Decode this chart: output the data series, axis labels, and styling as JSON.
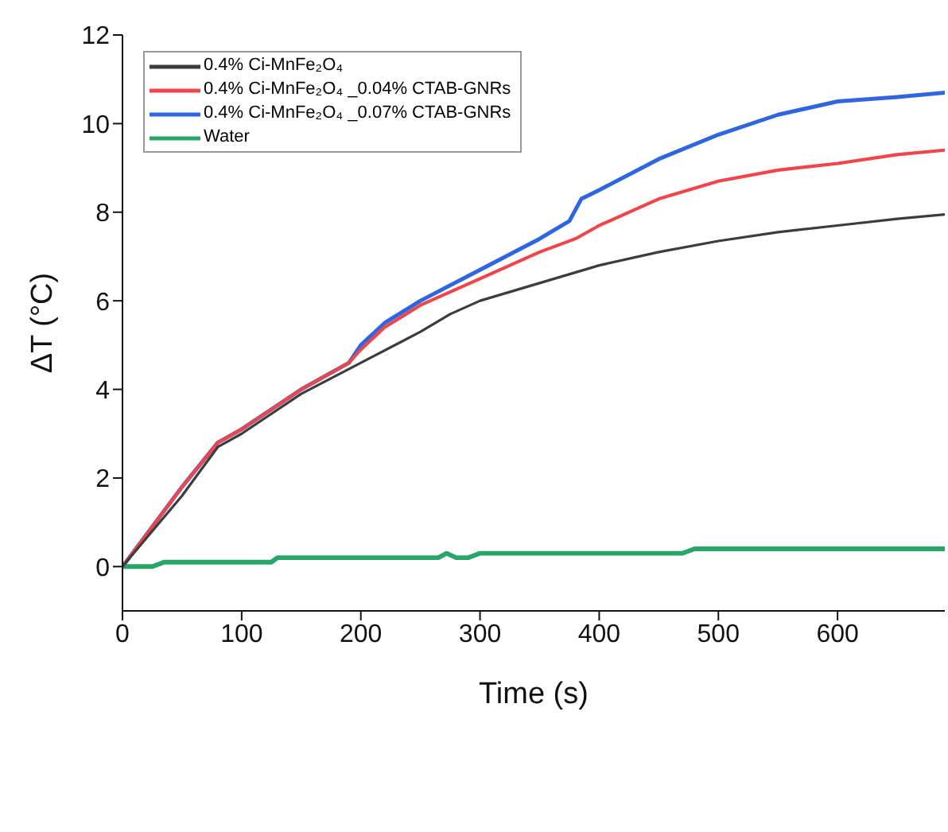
{
  "chart_data": {
    "type": "line",
    "xlabel": "Time (s)",
    "ylabel": "ΔT (°C)",
    "xlim": [
      0,
      690
    ],
    "xticks": [
      0,
      100,
      200,
      300,
      400,
      500,
      600
    ],
    "ylim": [
      -1,
      12
    ],
    "yticks": [
      0,
      2,
      4,
      6,
      8,
      10,
      12
    ],
    "grid": false,
    "legend": "top left",
    "marker": "none",
    "line_style": "solid",
    "series": [
      {
        "name": "0.4% Ci-MnFe₂O₄",
        "color": "#3c3c3c",
        "x": [
          0,
          50,
          80,
          100,
          150,
          200,
          250,
          275,
          300,
          350,
          400,
          450,
          500,
          550,
          600,
          650,
          690
        ],
        "values": [
          0,
          1.6,
          2.7,
          3.0,
          3.9,
          4.6,
          5.3,
          5.7,
          6.0,
          6.4,
          6.8,
          7.1,
          7.35,
          7.55,
          7.7,
          7.85,
          7.95
        ]
      },
      {
        "name": "0.4% Ci-MnFe₂O₄ _0.04% CTAB-GNRs",
        "color": "#f0454a",
        "x": [
          0,
          50,
          80,
          100,
          150,
          190,
          200,
          220,
          250,
          300,
          350,
          380,
          400,
          450,
          500,
          550,
          600,
          650,
          690
        ],
        "values": [
          0,
          1.8,
          2.8,
          3.1,
          4.0,
          4.6,
          4.9,
          5.4,
          5.9,
          6.5,
          7.1,
          7.4,
          7.7,
          8.3,
          8.7,
          8.95,
          9.1,
          9.3,
          9.4
        ]
      },
      {
        "name": "0.4% Ci-MnFe₂O₄ _0.07% CTAB-GNRs",
        "color": "#2f66e0",
        "x": [
          0,
          50,
          80,
          100,
          150,
          190,
          200,
          220,
          250,
          300,
          350,
          375,
          385,
          400,
          450,
          500,
          550,
          600,
          650,
          690
        ],
        "values": [
          0,
          1.8,
          2.8,
          3.1,
          4.0,
          4.6,
          5.0,
          5.5,
          6.0,
          6.7,
          7.4,
          7.8,
          8.3,
          8.5,
          9.2,
          9.75,
          10.2,
          10.5,
          10.6,
          10.7
        ]
      },
      {
        "name": "Water",
        "color": "#2aa56a",
        "x": [
          0,
          25,
          35,
          125,
          130,
          265,
          272,
          280,
          290,
          300,
          470,
          480,
          690
        ],
        "values": [
          0,
          0,
          0.1,
          0.1,
          0.2,
          0.2,
          0.3,
          0.2,
          0.2,
          0.3,
          0.3,
          0.4,
          0.4
        ]
      }
    ]
  }
}
